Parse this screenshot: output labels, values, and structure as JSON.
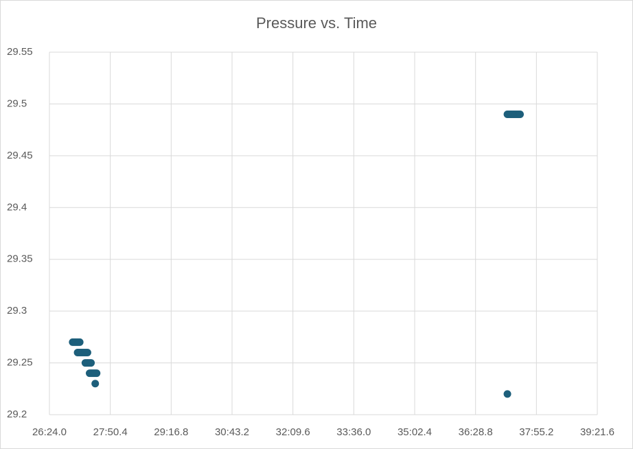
{
  "chart_data": {
    "type": "scatter",
    "title": "Pressure vs. Time",
    "series": [
      {
        "color": "#1d5f7b",
        "x": [
          1617,
          1619,
          1621,
          1623,
          1625,
          1627,
          1624,
          1626,
          1628,
          1630,
          1632,
          1634,
          1636,
          1638,
          1635,
          1637,
          1639,
          1641,
          1643,
          1641,
          1643,
          1645,
          1647,
          1649,
          1651,
          1649,
          2234,
          2234,
          2236,
          2238,
          2240,
          2242,
          2244,
          2246,
          2248,
          2250,
          2252
        ],
        "values": [
          29.27,
          29.27,
          29.27,
          29.27,
          29.27,
          29.27,
          29.26,
          29.26,
          29.26,
          29.26,
          29.26,
          29.26,
          29.26,
          29.26,
          29.25,
          29.25,
          29.25,
          29.25,
          29.25,
          29.24,
          29.24,
          29.24,
          29.24,
          29.24,
          29.24,
          29.23,
          29.22,
          29.49,
          29.49,
          29.49,
          29.49,
          29.49,
          29.49,
          29.49,
          29.49,
          29.49,
          29.49
        ]
      }
    ],
    "xlim": [
      1584,
      2361.6
    ],
    "xticks": [
      {
        "value": 1584,
        "label": "26:24.0"
      },
      {
        "value": 1670.4,
        "label": "27:50.4"
      },
      {
        "value": 1756.8,
        "label": "29:16.8"
      },
      {
        "value": 1843.2,
        "label": "30:43.2"
      },
      {
        "value": 1929.6,
        "label": "32:09.6"
      },
      {
        "value": 2016,
        "label": "33:36.0"
      },
      {
        "value": 2102.4,
        "label": "35:02.4"
      },
      {
        "value": 2188.8,
        "label": "36:28.8"
      },
      {
        "value": 2275.2,
        "label": "37:55.2"
      },
      {
        "value": 2361.6,
        "label": "39:21.6"
      }
    ],
    "ylim": [
      29.2,
      29.55
    ],
    "yticks": [
      29.2,
      29.25,
      29.3,
      29.35,
      29.4,
      29.45,
      29.5,
      29.55
    ],
    "grid": true
  }
}
